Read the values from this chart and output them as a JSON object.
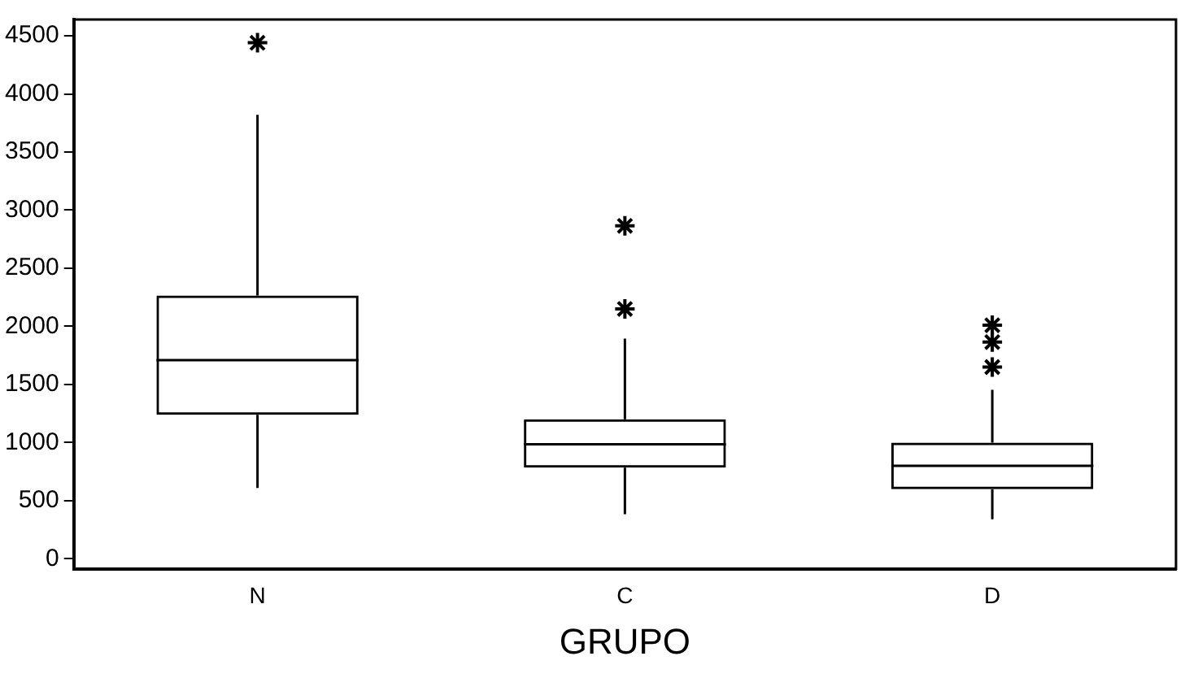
{
  "chart_data": {
    "type": "box",
    "xlabel": "GRUPO",
    "categories": [
      "N",
      "C",
      "D"
    ],
    "boxes": [
      {
        "low": 610,
        "q1": 1240,
        "median": 1710,
        "q3": 2265,
        "high": 3820,
        "outliers": [
          4440
        ]
      },
      {
        "low": 385,
        "q1": 785,
        "median": 985,
        "q3": 1200,
        "high": 1895,
        "outliers": [
          2150,
          2865
        ]
      },
      {
        "low": 340,
        "q1": 600,
        "median": 800,
        "q3": 1000,
        "high": 1455,
        "outliers": [
          1650,
          1865,
          2010
        ]
      }
    ],
    "color": "#000000",
    "marker": "star",
    "grid": false,
    "legend": false,
    "ylim": [
      -85,
      4640
    ],
    "yticks": [
      0,
      500,
      1000,
      1500,
      2000,
      2500,
      3000,
      3500,
      4000,
      4500
    ]
  }
}
